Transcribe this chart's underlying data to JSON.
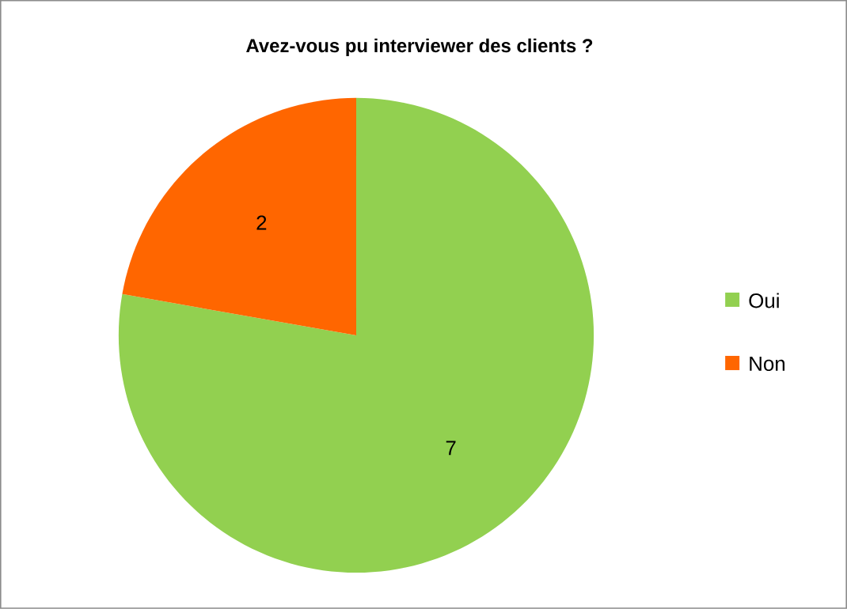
{
  "chart_data": {
    "type": "pie",
    "title": "Avez-vous pu interviewer des clients ?",
    "categories": [
      "Oui",
      "Non"
    ],
    "values": [
      7,
      2
    ],
    "colors": [
      "#92d050",
      "#ff6600"
    ],
    "data_labels": true,
    "legend": "right"
  }
}
